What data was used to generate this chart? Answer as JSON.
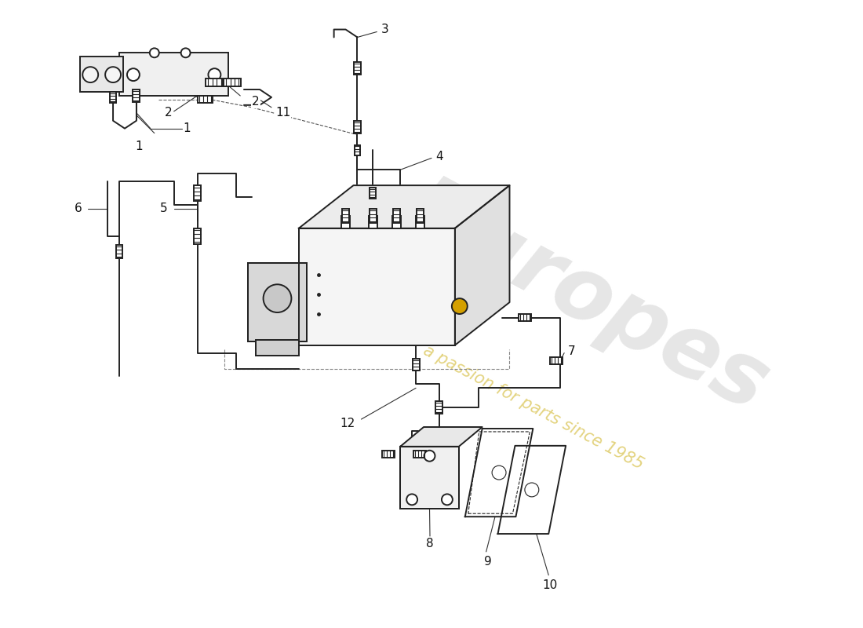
{
  "background_color": "#ffffff",
  "line_color": "#222222",
  "watermark1_color": "#c8c8c8",
  "watermark2_color": "#c8a800",
  "watermark1_text": "Europes",
  "watermark2_text": "a passion for parts since 1985",
  "label_fontsize": 11,
  "label_color": "#111111",
  "leader_color": "#333333",
  "part_numbers": [
    "1",
    "2",
    "3",
    "4",
    "5",
    "6",
    "7",
    "8",
    "9",
    "10",
    "11",
    "12"
  ]
}
